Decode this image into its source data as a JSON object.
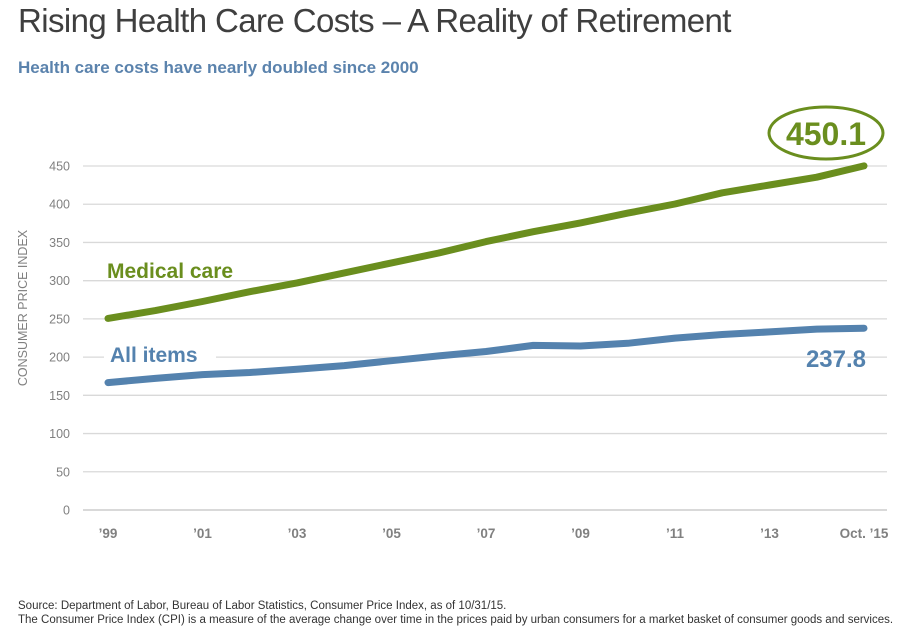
{
  "title": "Rising Health Care Costs – A Reality of Retirement",
  "subtitle": "Health care costs have nearly doubled since 2000",
  "footer": {
    "source": "Source: Department of Labor, Bureau of Labor Statistics, Consumer Price Index, as of 10/31/15.",
    "note": "The Consumer Price Index (CPI) is a measure of the average change over time in the prices paid by urban consumers for a market basket of consumer goods and services."
  },
  "colors": {
    "medical": "#6a8e1e",
    "all_items": "#5482ae",
    "grid": "#d9d9d9",
    "tick_text": "#808080"
  },
  "chart_data": {
    "type": "line",
    "title": "Rising Health Care Costs – A Reality of Retirement",
    "subtitle": "Health care costs have nearly doubled since 2000",
    "xlabel": "",
    "ylabel": "CONSUMER PRICE INDEX",
    "ylim": [
      0,
      450
    ],
    "yticks": [
      0,
      50,
      100,
      150,
      200,
      250,
      300,
      350,
      400,
      450
    ],
    "x": [
      1999,
      2000,
      2001,
      2002,
      2003,
      2004,
      2005,
      2006,
      2007,
      2008,
      2009,
      2010,
      2011,
      2012,
      2013,
      2014,
      2015
    ],
    "xticks": [
      {
        "x": 1999,
        "label": "’99"
      },
      {
        "x": 2001,
        "label": "’01"
      },
      {
        "x": 2003,
        "label": "’03"
      },
      {
        "x": 2005,
        "label": "’05"
      },
      {
        "x": 2007,
        "label": "’07"
      },
      {
        "x": 2009,
        "label": "’09"
      },
      {
        "x": 2011,
        "label": "’11"
      },
      {
        "x": 2013,
        "label": "’13"
      },
      {
        "x": 2015,
        "label": "Oct. ’15"
      }
    ],
    "grid": true,
    "series": [
      {
        "name": "Medical care",
        "color": "#6a8e1e",
        "values": [
          250.6,
          260.8,
          272.8,
          285.6,
          297.1,
          310.1,
          323.2,
          336.2,
          351.1,
          364.1,
          375.6,
          388.4,
          400.3,
          414.9,
          425.1,
          435.3,
          450.1
        ],
        "end_label": "450.1",
        "end_label_circled": true
      },
      {
        "name": "All items",
        "color": "#5482ae",
        "values": [
          166.6,
          172.2,
          177.1,
          179.9,
          184.0,
          188.9,
          195.3,
          201.6,
          207.3,
          215.3,
          214.5,
          218.1,
          224.9,
          229.6,
          233.0,
          236.7,
          237.8
        ],
        "end_label": "237.8",
        "end_label_circled": false
      }
    ]
  }
}
